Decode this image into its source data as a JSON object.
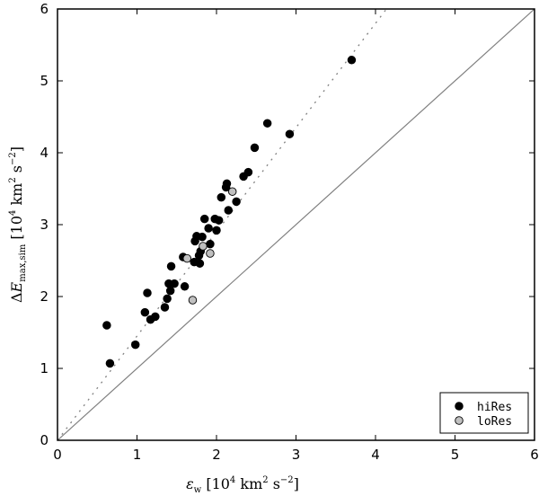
{
  "chart_data": {
    "type": "scatter",
    "title": "",
    "xlabel": "ε_w [10^4 km^2 s^-2]",
    "ylabel": "ΔE_max,sim [10^4 km^2 s^-2]",
    "xlim": [
      0,
      6
    ],
    "ylim": [
      0,
      6
    ],
    "xticks": [
      "0",
      "1",
      "2",
      "3",
      "4",
      "5",
      "6"
    ],
    "yticks": [
      "0",
      "1",
      "2",
      "3",
      "4",
      "5",
      "6"
    ],
    "grid": false,
    "legend_position": "bottom-right",
    "reference_lines": [
      {
        "style": "solid",
        "color": "#808080",
        "slope": 1.0
      },
      {
        "style": "dotted",
        "color": "#808080",
        "slope": 1.45
      }
    ],
    "series": [
      {
        "name": "hiRes",
        "color": "#000000",
        "points": [
          [
            0.62,
            1.6
          ],
          [
            0.66,
            1.07
          ],
          [
            0.98,
            1.33
          ],
          [
            1.1,
            1.78
          ],
          [
            1.13,
            2.05
          ],
          [
            1.17,
            1.68
          ],
          [
            1.23,
            1.72
          ],
          [
            1.35,
            1.85
          ],
          [
            1.38,
            1.97
          ],
          [
            1.4,
            2.18
          ],
          [
            1.42,
            2.08
          ],
          [
            1.43,
            2.42
          ],
          [
            1.47,
            2.18
          ],
          [
            1.58,
            2.55
          ],
          [
            1.6,
            2.14
          ],
          [
            1.72,
            2.48
          ],
          [
            1.73,
            2.77
          ],
          [
            1.75,
            2.84
          ],
          [
            1.78,
            2.57
          ],
          [
            1.79,
            2.46
          ],
          [
            1.8,
            2.63
          ],
          [
            1.82,
            2.83
          ],
          [
            1.85,
            3.08
          ],
          [
            1.9,
            2.95
          ],
          [
            1.92,
            2.73
          ],
          [
            1.98,
            3.08
          ],
          [
            2.0,
            2.92
          ],
          [
            2.03,
            3.06
          ],
          [
            2.06,
            3.38
          ],
          [
            2.12,
            3.52
          ],
          [
            2.13,
            3.57
          ],
          [
            2.15,
            3.2
          ],
          [
            2.25,
            3.32
          ],
          [
            2.34,
            3.67
          ],
          [
            2.4,
            3.73
          ],
          [
            2.48,
            4.07
          ],
          [
            2.64,
            4.41
          ],
          [
            2.92,
            4.26
          ],
          [
            3.7,
            5.29
          ]
        ]
      },
      {
        "name": "loRes",
        "color": "#c0c0c0",
        "points": [
          [
            1.63,
            2.53
          ],
          [
            1.7,
            1.95
          ],
          [
            1.83,
            2.7
          ],
          [
            1.92,
            2.6
          ],
          [
            2.2,
            3.46
          ]
        ]
      }
    ]
  }
}
